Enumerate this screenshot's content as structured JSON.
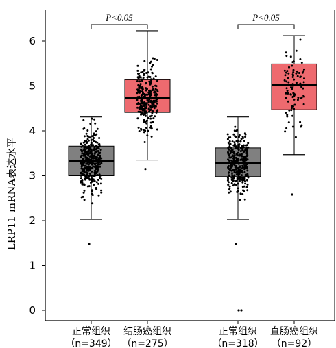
{
  "chart_data": {
    "type": "box",
    "ylabel": "LRP11 mRNA表达水平",
    "ylim": [
      -0.2,
      6.7
    ],
    "yticks": [
      0,
      1,
      2,
      3,
      4,
      5,
      6
    ],
    "colors": {
      "normal": "#808080",
      "tumor": "#ee6a6f"
    },
    "groups": [
      {
        "label": "正常组织",
        "n_label": "（n=349）",
        "n": 349,
        "color_key": "normal",
        "min": 2.03,
        "q1": 3.0,
        "median": 3.32,
        "q3": 3.66,
        "max": 4.31,
        "outliers": [
          1.48
        ]
      },
      {
        "label": "结肠癌组织",
        "n_label": "（n=275）",
        "n": 275,
        "color_key": "tumor",
        "min": 3.35,
        "q1": 4.41,
        "median": 4.74,
        "q3": 5.14,
        "max": 6.23,
        "outliers": [
          3.15
        ]
      },
      {
        "label": "正常组织",
        "n_label": "（n=318）",
        "n": 318,
        "color_key": "normal",
        "min": 2.03,
        "q1": 2.98,
        "median": 3.28,
        "q3": 3.62,
        "max": 4.31,
        "outliers": [
          1.48,
          0.0,
          0.0
        ]
      },
      {
        "label": "直肠癌组织",
        "n_label": "（n=92）",
        "n": 92,
        "color_key": "tumor",
        "min": 3.47,
        "q1": 4.47,
        "median": 5.03,
        "q3": 5.49,
        "max": 6.12,
        "outliers": [
          2.58
        ]
      }
    ],
    "comparisons": [
      {
        "label": "P<0.05",
        "groups": [
          0,
          1
        ]
      },
      {
        "label": "P<0.05",
        "groups": [
          2,
          3
        ]
      }
    ]
  }
}
